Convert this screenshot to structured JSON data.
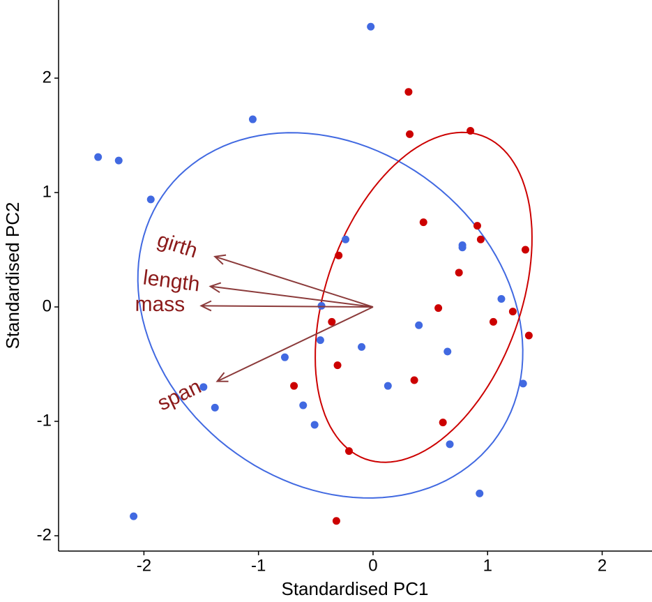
{
  "chart_data": {
    "type": "biplot",
    "x_label": "Standardised PC1",
    "y_label": "Standardised PC2",
    "xlim": [
      -2.745,
      2.435
    ],
    "ylim": [
      -2.134,
      2.683
    ],
    "xticks": [
      -2,
      -1,
      0,
      1,
      2
    ],
    "yticks": [
      -2,
      -1,
      0,
      1,
      2
    ],
    "series": [
      {
        "color": "#4169e1",
        "x": [
          -0.02,
          -1.05,
          -2.4,
          -2.22,
          -1.94,
          -0.24,
          0.78,
          0.78,
          -0.45,
          1.12,
          -0.46,
          0.4,
          -0.1,
          -0.77,
          0.65,
          0.13,
          -1.48,
          1.31,
          -1.38,
          -0.61,
          -0.51,
          0.67,
          0.93,
          -2.09
        ],
        "y": [
          2.45,
          1.64,
          1.31,
          1.28,
          0.94,
          0.59,
          0.54,
          0.52,
          0.01,
          0.07,
          -0.29,
          -0.16,
          -0.35,
          -0.44,
          -0.39,
          -0.69,
          -0.7,
          -0.67,
          -0.88,
          -0.86,
          -1.03,
          -1.2,
          -1.63,
          -1.83
        ]
      },
      {
        "color": "#cc0000",
        "x": [
          0.31,
          0.32,
          0.85,
          0.44,
          0.91,
          0.94,
          1.33,
          -0.3,
          0.75,
          0.57,
          -0.36,
          1.05,
          1.22,
          1.36,
          -0.31,
          0.36,
          -0.69,
          0.61,
          -0.21,
          -0.32
        ],
        "y": [
          1.88,
          1.51,
          1.54,
          0.74,
          0.71,
          0.59,
          0.5,
          0.45,
          0.3,
          -0.01,
          -0.13,
          -0.13,
          -0.04,
          -0.25,
          -0.51,
          -0.64,
          -0.69,
          -1.01,
          -1.26,
          -1.87
        ]
      }
    ],
    "arrow_color": "#8b3a3a",
    "arrows": [
      {
        "label": "girth",
        "x": -1.38,
        "y": 0.44
      },
      {
        "label": "length",
        "x": -1.42,
        "y": 0.18
      },
      {
        "label": "mass",
        "x": -1.5,
        "y": 0.01
      },
      {
        "label": "span",
        "x": -1.36,
        "y": -0.65
      }
    ]
  }
}
